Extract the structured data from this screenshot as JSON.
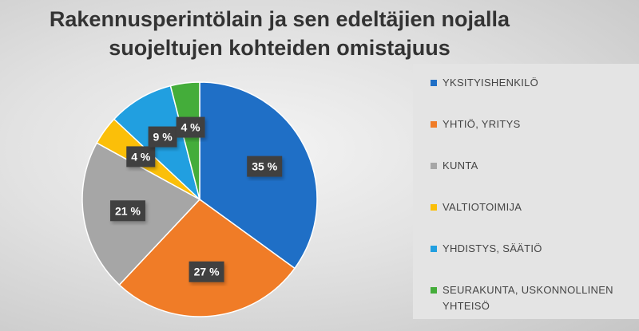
{
  "chart_data": {
    "type": "pie",
    "title_lines": [
      "Rakennusperintölain ja sen edeltäjien nojalla",
      "suojeltujen kohteiden omistajuus"
    ],
    "legend_position": "right",
    "slices": [
      {
        "name": "YKSITYISHENKILÖ",
        "value": 35,
        "label": "35 %",
        "color": "#1f6fc6"
      },
      {
        "name": "YHTIÖ, YRITYS",
        "value": 27,
        "label": "27 %",
        "color": "#f07c27"
      },
      {
        "name": "KUNTA",
        "value": 21,
        "label": "21 %",
        "color": "#a6a6a6"
      },
      {
        "name": "VALTIOTOIMIJA",
        "value": 4,
        "label": "4 %",
        "color": "#fbbf09"
      },
      {
        "name": "YHDISTYS, SÄÄTIÖ",
        "value": 9,
        "label": "9 %",
        "color": "#219fe0"
      },
      {
        "name": "SEURAKUNTA, USKONNOLLINEN YHTEISÖ",
        "value": 4,
        "label": "4 %",
        "color": "#44ad3a"
      }
    ]
  }
}
